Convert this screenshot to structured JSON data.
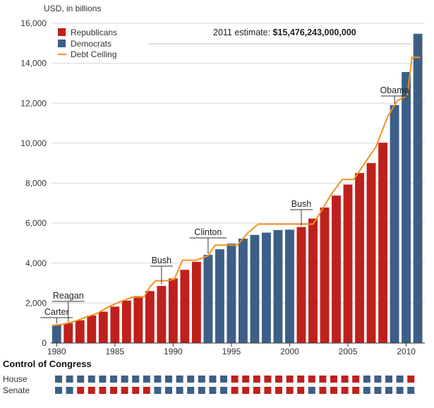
{
  "chart_data": {
    "type": "bar",
    "unit_label": "USD, in billions",
    "ylim": [
      0,
      16000
    ],
    "yticks": [
      "16,000",
      "14,000",
      "12,000",
      "10,000",
      "8,000",
      "6,000",
      "4,000",
      "2,000",
      "0"
    ],
    "yticks_values": [
      16000,
      14000,
      12000,
      10000,
      8000,
      6000,
      4000,
      2000,
      0
    ],
    "xlim": [
      1979.5,
      2011.6
    ],
    "xticks": [
      "1980",
      "1985",
      "1990",
      "1995",
      "2000",
      "2005",
      "2010"
    ],
    "xticks_values": [
      1980,
      1985,
      1990,
      1995,
      2000,
      2005,
      2010
    ],
    "grid": true,
    "legend": {
      "position": "top-left",
      "items": [
        {
          "label": "Republicans",
          "color": "#c0201c",
          "kind": "square"
        },
        {
          "label": "Democrats",
          "color": "#3d5f87",
          "kind": "square"
        },
        {
          "label": "Debt Ceiling",
          "color": "#f0921e",
          "kind": "line"
        }
      ]
    },
    "estimate": {
      "prefix": "2011 estimate: ",
      "value": "$15,476,243,000,000"
    },
    "colors": {
      "R": "#c0201c",
      "D": "#3d5f87",
      "ceiling": "#f0921e"
    },
    "bars": [
      {
        "year": 1980,
        "value": 908,
        "party": "D"
      },
      {
        "year": 1981,
        "value": 998,
        "party": "R"
      },
      {
        "year": 1982,
        "value": 1142,
        "party": "R"
      },
      {
        "year": 1983,
        "value": 1377,
        "party": "R"
      },
      {
        "year": 1984,
        "value": 1572,
        "party": "R"
      },
      {
        "year": 1985,
        "value": 1823,
        "party": "R"
      },
      {
        "year": 1986,
        "value": 2125,
        "party": "R"
      },
      {
        "year": 1987,
        "value": 2350,
        "party": "R"
      },
      {
        "year": 1988,
        "value": 2602,
        "party": "R"
      },
      {
        "year": 1989,
        "value": 2857,
        "party": "R"
      },
      {
        "year": 1990,
        "value": 3233,
        "party": "R"
      },
      {
        "year": 1991,
        "value": 3665,
        "party": "R"
      },
      {
        "year": 1992,
        "value": 4065,
        "party": "R"
      },
      {
        "year": 1993,
        "value": 4411,
        "party": "D"
      },
      {
        "year": 1994,
        "value": 4693,
        "party": "D"
      },
      {
        "year": 1995,
        "value": 4974,
        "party": "D"
      },
      {
        "year": 1996,
        "value": 5225,
        "party": "D"
      },
      {
        "year": 1997,
        "value": 5413,
        "party": "D"
      },
      {
        "year": 1998,
        "value": 5526,
        "party": "D"
      },
      {
        "year": 1999,
        "value": 5656,
        "party": "D"
      },
      {
        "year": 2000,
        "value": 5674,
        "party": "D"
      },
      {
        "year": 2001,
        "value": 5807,
        "party": "R"
      },
      {
        "year": 2002,
        "value": 6228,
        "party": "R"
      },
      {
        "year": 2003,
        "value": 6783,
        "party": "R"
      },
      {
        "year": 2004,
        "value": 7379,
        "party": "R"
      },
      {
        "year": 2005,
        "value": 7933,
        "party": "R"
      },
      {
        "year": 2006,
        "value": 8507,
        "party": "R"
      },
      {
        "year": 2007,
        "value": 9008,
        "party": "R"
      },
      {
        "year": 2008,
        "value": 10025,
        "party": "R"
      },
      {
        "year": 2009,
        "value": 11910,
        "party": "D"
      },
      {
        "year": 2010,
        "value": 13562,
        "party": "D"
      },
      {
        "year": 2011,
        "value": 15476,
        "party": "D"
      }
    ],
    "debt_ceiling": [
      {
        "x": 1979.6,
        "y": 880
      },
      {
        "x": 1980.5,
        "y": 935
      },
      {
        "x": 1981.5,
        "y": 1080
      },
      {
        "x": 1982.5,
        "y": 1290
      },
      {
        "x": 1983.5,
        "y": 1490
      },
      {
        "x": 1984.5,
        "y": 1825
      },
      {
        "x": 1985.5,
        "y": 2078
      },
      {
        "x": 1986.5,
        "y": 2300
      },
      {
        "x": 1987.5,
        "y": 2300
      },
      {
        "x": 1988.0,
        "y": 2800
      },
      {
        "x": 1988.5,
        "y": 3123
      },
      {
        "x": 1989.5,
        "y": 3123
      },
      {
        "x": 1990.1,
        "y": 3195
      },
      {
        "x": 1990.8,
        "y": 4145
      },
      {
        "x": 1992.0,
        "y": 4145
      },
      {
        "x": 1993.0,
        "y": 4370
      },
      {
        "x": 1993.6,
        "y": 4900
      },
      {
        "x": 1995.5,
        "y": 4900
      },
      {
        "x": 1996.4,
        "y": 5500
      },
      {
        "x": 1997.3,
        "y": 5950
      },
      {
        "x": 2002.0,
        "y": 5950
      },
      {
        "x": 2002.5,
        "y": 6400
      },
      {
        "x": 2003.5,
        "y": 7384
      },
      {
        "x": 2004.5,
        "y": 8184
      },
      {
        "x": 2005.5,
        "y": 8184
      },
      {
        "x": 2006.4,
        "y": 8965
      },
      {
        "x": 2007.4,
        "y": 9815
      },
      {
        "x": 2008.4,
        "y": 11315
      },
      {
        "x": 2009.2,
        "y": 12104
      },
      {
        "x": 2010.1,
        "y": 12394
      },
      {
        "x": 2010.5,
        "y": 14294
      },
      {
        "x": 2011.2,
        "y": 14294
      }
    ],
    "annotations": [
      {
        "label": "Carter",
        "x": 1980,
        "value": 908
      },
      {
        "label": "Reagan",
        "x": 1981,
        "value": 998
      },
      {
        "label": "Bush",
        "x": 1989,
        "value": 2857
      },
      {
        "label": "Clinton",
        "x": 1993,
        "value": 4411
      },
      {
        "label": "Bush",
        "x": 2001,
        "value": 5807
      },
      {
        "label": "Obama",
        "x": 2009,
        "value": 11910
      }
    ],
    "congress": {
      "title": "Control of Congress",
      "rows": [
        {
          "label": "House",
          "parties": [
            "D",
            "D",
            "D",
            "D",
            "D",
            "D",
            "D",
            "D",
            "D",
            "D",
            "D",
            "D",
            "D",
            "D",
            "D",
            "D",
            "R",
            "R",
            "R",
            "R",
            "R",
            "R",
            "R",
            "R",
            "R",
            "R",
            "R",
            "R",
            "D",
            "D",
            "D",
            "D",
            "R"
          ]
        },
        {
          "label": "Senate",
          "parties": [
            "D",
            "D",
            "R",
            "R",
            "R",
            "R",
            "R",
            "R",
            "R",
            "D",
            "D",
            "D",
            "D",
            "D",
            "D",
            "D",
            "R",
            "R",
            "R",
            "R",
            "R",
            "R",
            "R",
            "D",
            "R",
            "R",
            "R",
            "R",
            "D",
            "D",
            "D",
            "D",
            "D"
          ]
        }
      ]
    }
  }
}
